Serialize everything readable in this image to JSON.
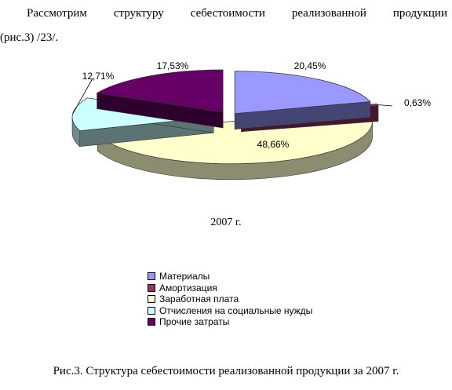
{
  "intro": {
    "line1": "Рассмотрим структуру себестоимости реализованной продукции",
    "line2": "(рис.3) /23/."
  },
  "chart_data": {
    "type": "pie",
    "title": "2007 г.",
    "categories": [
      "Материалы",
      "Амортизация",
      "Заработная плата",
      "Отчисления на социальные нужды",
      "Прочие затраты"
    ],
    "values": [
      20.45,
      0.63,
      48.66,
      12.71,
      17.53
    ],
    "value_labels": [
      "20,45%",
      "0,63%",
      "48,66%",
      "12,71%",
      "17,53%"
    ],
    "colors": [
      "#9999ff",
      "#993366",
      "#ffffcc",
      "#ccffff",
      "#660066"
    ],
    "legend_position": "bottom",
    "style": "3d-exploded"
  },
  "caption": "Рис.3. Структура себестоимости реализованной продукции за 2007 г."
}
